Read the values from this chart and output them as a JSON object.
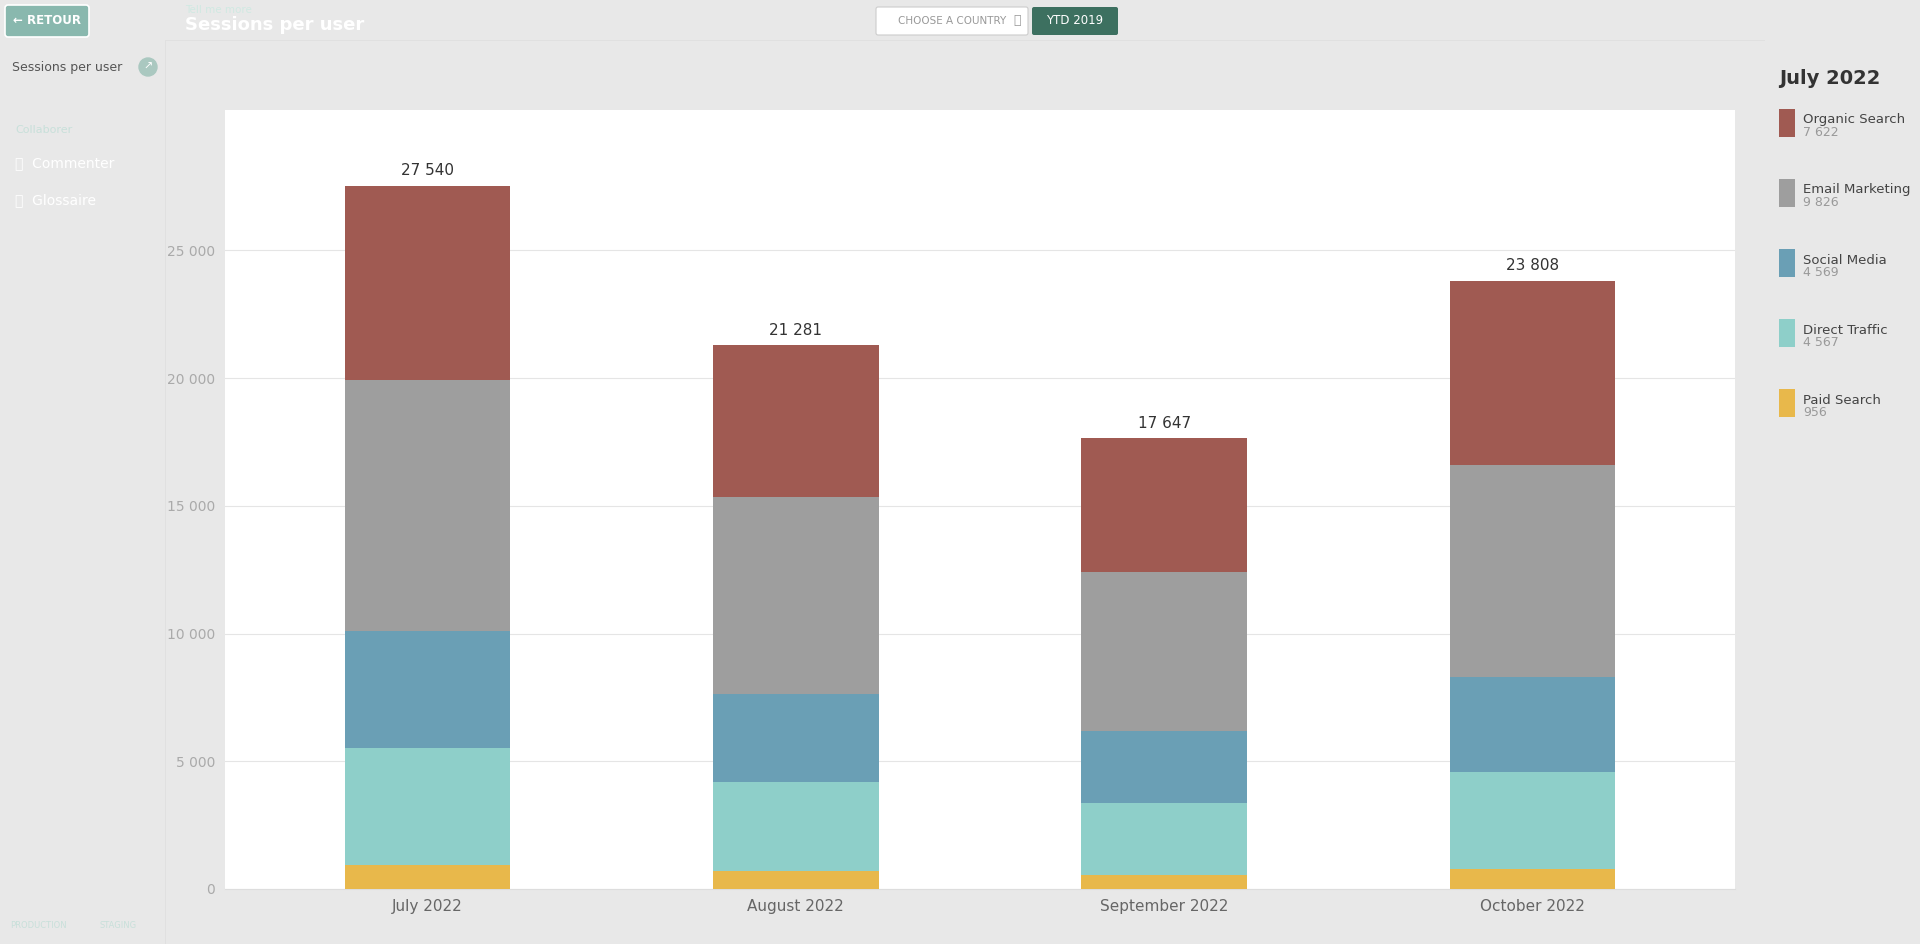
{
  "months": [
    "July 2022",
    "August 2022",
    "September 2022",
    "October 2022"
  ],
  "totals_display": [
    "27 540",
    "21 281",
    "17 647",
    "23 808"
  ],
  "totals_numeric": [
    27540,
    21281,
    17647,
    23808
  ],
  "legend_title": "July 2022",
  "categories": [
    "Paid Search",
    "Direct Traffic",
    "Social Media",
    "Email Marketing",
    "Organic Search"
  ],
  "legend_categories": [
    "Organic Search",
    "Email Marketing",
    "Social Media",
    "Direct Traffic",
    "Paid Search"
  ],
  "legend_values": [
    "7 622",
    "9 826",
    "4 569",
    "4 567",
    "956"
  ],
  "colors": [
    "#e8b84b",
    "#8ecfc9",
    "#6a9fb5",
    "#9e9e9e",
    "#a05a52"
  ],
  "legend_colors": [
    "#a05a52",
    "#9e9e9e",
    "#6a9fb5",
    "#8ecfc9",
    "#e8b84b"
  ],
  "stacked_data": {
    "July 2022": [
      956,
      4567,
      4569,
      9826,
      7622
    ],
    "August 2022": [
      700,
      3500,
      3450,
      7700,
      5931
    ],
    "September 2022": [
      550,
      2800,
      2850,
      6200,
      5247
    ],
    "October 2022": [
      800,
      3800,
      3700,
      8300,
      7208
    ]
  },
  "yticks": [
    0,
    5000,
    10000,
    15000,
    20000,
    25000
  ],
  "ytick_labels": [
    "0",
    "5 000",
    "10 000",
    "15 000",
    "20 000",
    "25 000"
  ],
  "top_bar_color": "#6fa898",
  "left_sidebar_top_color": "#b8d0cb",
  "left_sidebar_bot_color": "#6fa898",
  "chart_bg": "#ffffff",
  "right_panel_bg": "#f5f5f5",
  "figsize": [
    19.2,
    9.44
  ],
  "dpi": 100
}
